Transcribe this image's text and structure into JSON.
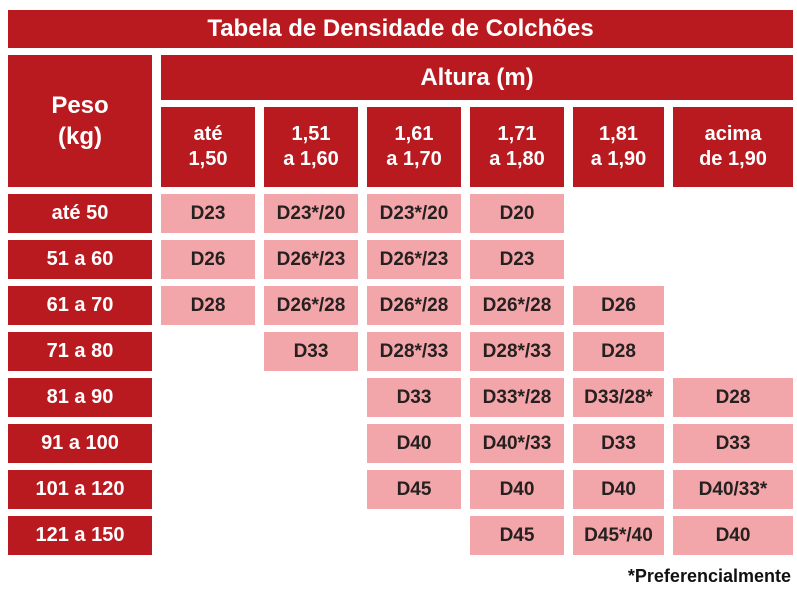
{
  "title": "Tabela de Densidade de Colchões",
  "weight_header": "Peso\n(kg)",
  "height_header": "Altura (m)",
  "columns_display": [
    "até\n1,50",
    "1,51\na 1,60",
    "1,61\na 1,70",
    "1,71\na 1,80",
    "1,81\na 1,90",
    "acima\nde 1,90"
  ],
  "rows": [
    {
      "label": "até 50",
      "cells": [
        "D23",
        "D23*/20",
        "D23*/20",
        "D20",
        "",
        ""
      ]
    },
    {
      "label": "51 a 60",
      "cells": [
        "D26",
        "D26*/23",
        "D26*/23",
        "D23",
        "",
        ""
      ]
    },
    {
      "label": "61 a 70",
      "cells": [
        "D28",
        "D26*/28",
        "D26*/28",
        "D26*/28",
        "D26",
        ""
      ]
    },
    {
      "label": "71 a 80",
      "cells": [
        "",
        "D33",
        "D28*/33",
        "D28*/33",
        "D28",
        ""
      ]
    },
    {
      "label": "81 a 90",
      "cells": [
        "",
        "",
        "D33",
        "D33*/28",
        "D33/28*",
        "D28"
      ]
    },
    {
      "label": "91 a 100",
      "cells": [
        "",
        "",
        "D40",
        "D40*/33",
        "D33",
        "D33"
      ]
    },
    {
      "label": "101 a 120",
      "cells": [
        "",
        "",
        "D45",
        "D40",
        "D40",
        "D40/33*"
      ]
    },
    {
      "label": "121 a 150",
      "cells": [
        "",
        "",
        "",
        "D45",
        "D45*/40",
        "D40"
      ]
    }
  ],
  "footnote": "*Preferencialmente",
  "colors": {
    "header-red": "#b91a1f",
    "cell-pink": "#f3a6aa",
    "cell-text": "#262020",
    "background": "#ffffff"
  },
  "chart_data": {
    "type": "table",
    "title": "Tabela de Densidade de Colchões",
    "row_header": "Peso (kg)",
    "column_group_header": "Altura (m)",
    "columns": [
      "até 1,50",
      "1,51 a 1,60",
      "1,61 a 1,70",
      "1,71 a 1,80",
      "1,81 a 1,90",
      "acima de 1,90"
    ],
    "rows": [
      {
        "peso": "até 50",
        "values": [
          "D23",
          "D23*/20",
          "D23*/20",
          "D20",
          null,
          null
        ]
      },
      {
        "peso": "51 a 60",
        "values": [
          "D26",
          "D26*/23",
          "D26*/23",
          "D23",
          null,
          null
        ]
      },
      {
        "peso": "61 a 70",
        "values": [
          "D28",
          "D26*/28",
          "D26*/28",
          "D26*/28",
          "D26",
          null
        ]
      },
      {
        "peso": "71 a 80",
        "values": [
          null,
          "D33",
          "D28*/33",
          "D28*/33",
          "D28",
          null
        ]
      },
      {
        "peso": "81 a 90",
        "values": [
          null,
          null,
          "D33",
          "D33*/28",
          "D33/28*",
          "D28"
        ]
      },
      {
        "peso": "91 a 100",
        "values": [
          null,
          null,
          "D40",
          "D40*/33",
          "D33",
          "D33"
        ]
      },
      {
        "peso": "101 a 120",
        "values": [
          null,
          null,
          "D45",
          "D40",
          "D40",
          "D40/33*"
        ]
      },
      {
        "peso": "121 a 150",
        "values": [
          null,
          null,
          null,
          "D45",
          "D45*/40",
          "D40"
        ]
      }
    ],
    "footnote": "*Preferencialmente"
  }
}
